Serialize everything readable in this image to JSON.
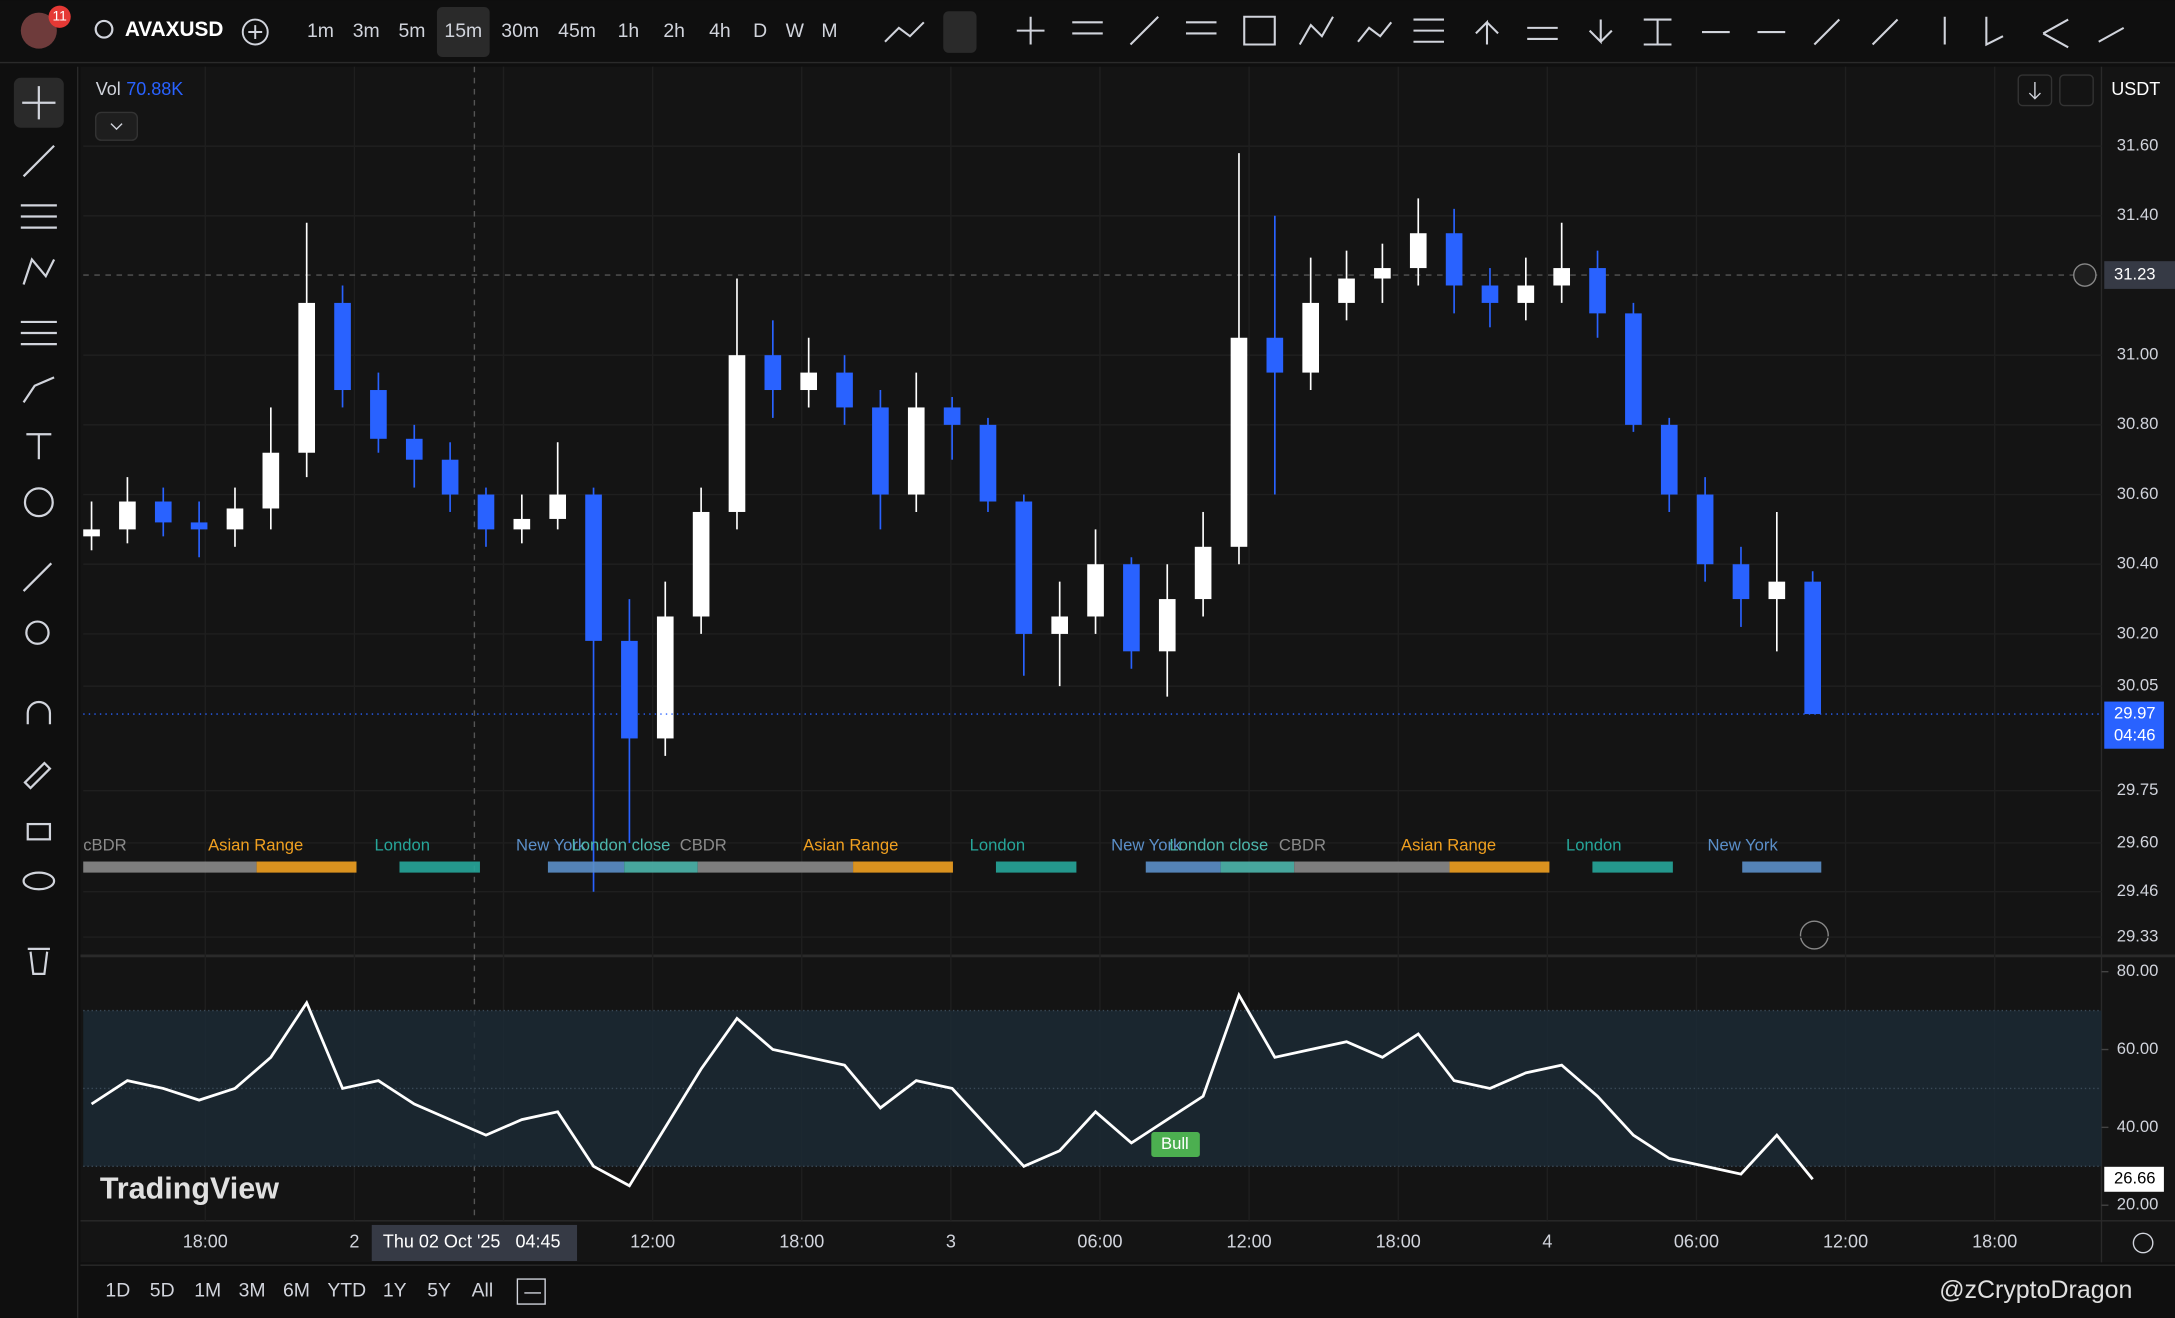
{
  "toolbar": {
    "badge": "11",
    "symbol": "AVAXUSD",
    "intervals": [
      "1m",
      "3m",
      "5m",
      "15m",
      "30m",
      "45m",
      "1h",
      "2h",
      "4h",
      "D",
      "W",
      "M"
    ],
    "active_interval": "15m"
  },
  "range_buttons": [
    "1D",
    "5D",
    "1M",
    "3M",
    "6M",
    "YTD",
    "1Y",
    "5Y",
    "All"
  ],
  "watermark": "TradingView",
  "credit": "@zCryptoDragon",
  "chart_data": [
    {
      "type": "candlestick",
      "legend_name": "Vol",
      "legend_value": "70.88K",
      "up_color": "#ffffff",
      "down_color": "#2962ff",
      "open": [
        30.48,
        30.5,
        30.58,
        30.52,
        30.5,
        30.56,
        30.72,
        31.15,
        30.9,
        30.76,
        30.7,
        30.6,
        30.5,
        30.53,
        30.6,
        30.18,
        29.9,
        30.25,
        30.55,
        31.0,
        30.9,
        30.95,
        30.85,
        30.6,
        30.85,
        30.8,
        30.58,
        30.2,
        30.25,
        30.4,
        30.15,
        30.3,
        30.45,
        31.05,
        30.95,
        31.15,
        31.22,
        31.25,
        31.35,
        31.2,
        31.15,
        31.2,
        31.25,
        31.12,
        30.8,
        30.6,
        30.4,
        30.3,
        30.35
      ],
      "high": [
        30.58,
        30.65,
        30.62,
        30.58,
        30.62,
        30.85,
        31.38,
        31.2,
        30.95,
        30.8,
        30.75,
        30.62,
        30.6,
        30.75,
        30.62,
        30.3,
        30.35,
        30.62,
        31.22,
        31.1,
        31.05,
        31.0,
        30.9,
        30.95,
        30.88,
        30.82,
        30.6,
        30.35,
        30.5,
        30.42,
        30.4,
        30.55,
        31.58,
        31.4,
        31.28,
        31.3,
        31.32,
        31.45,
        31.42,
        31.25,
        31.28,
        31.38,
        31.3,
        31.15,
        30.82,
        30.65,
        30.45,
        30.55,
        30.38
      ],
      "low": [
        30.44,
        30.46,
        30.48,
        30.42,
        30.45,
        30.5,
        30.65,
        30.85,
        30.72,
        30.62,
        30.55,
        30.45,
        30.46,
        30.5,
        29.46,
        29.6,
        29.85,
        30.2,
        30.5,
        30.82,
        30.85,
        30.8,
        30.5,
        30.55,
        30.7,
        30.55,
        30.08,
        30.05,
        30.2,
        30.1,
        30.02,
        30.25,
        30.4,
        30.6,
        30.9,
        31.1,
        31.15,
        31.2,
        31.12,
        31.08,
        31.1,
        31.15,
        31.05,
        30.78,
        30.55,
        30.35,
        30.22,
        30.15,
        29.97
      ],
      "close": [
        30.5,
        30.58,
        30.52,
        30.5,
        30.56,
        30.72,
        31.15,
        30.9,
        30.76,
        30.7,
        30.6,
        30.5,
        30.53,
        30.6,
        30.18,
        29.9,
        30.25,
        30.55,
        31.0,
        30.9,
        30.95,
        30.85,
        30.6,
        30.85,
        30.8,
        30.58,
        30.2,
        30.25,
        30.4,
        30.15,
        30.3,
        30.45,
        31.05,
        30.95,
        31.15,
        31.22,
        31.25,
        31.35,
        31.2,
        31.15,
        31.2,
        31.25,
        31.12,
        30.8,
        30.6,
        30.4,
        30.3,
        30.35,
        29.97
      ],
      "ylim": [
        29.28,
        31.82
      ],
      "yticks": [
        {
          "value": 31.6,
          "label": "31.60"
        },
        {
          "value": 31.4,
          "label": "31.40"
        },
        {
          "value": 31,
          "label": "31.00"
        },
        {
          "value": 30.8,
          "label": "30.80"
        },
        {
          "value": 30.6,
          "label": "30.60"
        },
        {
          "value": 30.4,
          "label": "30.40"
        },
        {
          "value": 30.2,
          "label": "30.20"
        },
        {
          "value": 30.05,
          "label": "30.05"
        },
        {
          "value": 29.75,
          "label": "29.75"
        },
        {
          "value": 29.6,
          "label": "29.60"
        },
        {
          "value": 29.46,
          "label": "29.46"
        },
        {
          "value": 29.33,
          "label": "29.33"
        }
      ],
      "crosshair_price": 31.23,
      "countdown": "04:46",
      "currency": "USDT",
      "x_labels": [
        "18:00",
        "2",
        null,
        "12:00",
        "18:00",
        "3",
        "06:00",
        "12:00",
        "18:00",
        "4",
        "06:00",
        "12:00",
        "18:00"
      ],
      "crosshair_time": "Thu 02 Oct '25   04:45",
      "grid": true,
      "sessions": [
        {
          "label": "cBDR",
          "color": "#8a8a8a"
        },
        {
          "label": "Asian Range",
          "color": "#f0a020"
        },
        {
          "label": "London",
          "color": "#26a69a"
        },
        {
          "label": "New York",
          "color": "#5b8fc9"
        },
        {
          "label": "London close",
          "color": "#4db6ac"
        },
        {
          "label": "CBDR",
          "color": "#8a8a8a"
        },
        {
          "label": "Asian Range",
          "color": "#f0a020"
        },
        {
          "label": "London",
          "color": "#26a69a"
        },
        {
          "label": "New York",
          "color": "#5b8fc9"
        },
        {
          "label": "London close",
          "color": "#4db6ac"
        },
        {
          "label": "CBDR",
          "color": "#8a8a8a"
        },
        {
          "label": "Asian Range",
          "color": "#f0a020"
        },
        {
          "label": "London",
          "color": "#26a69a"
        },
        {
          "label": "New York",
          "color": "#5b8fc9"
        }
      ]
    },
    {
      "type": "line",
      "color": "#ffffff",
      "values": [
        46,
        52,
        50,
        47,
        50,
        58,
        72,
        50,
        52,
        46,
        42,
        38,
        42,
        44,
        30,
        25,
        40,
        55,
        68,
        60,
        58,
        56,
        45,
        52,
        50,
        40,
        30,
        34,
        44,
        36,
        42,
        48,
        74,
        58,
        60,
        62,
        58,
        64,
        52,
        50,
        54,
        56,
        48,
        38,
        32,
        30,
        28,
        38,
        26.66
      ],
      "ylim": [
        16,
        83
      ],
      "yticks": [
        {
          "value": 80,
          "label": "80.00"
        },
        {
          "value": 60,
          "label": "60.00"
        },
        {
          "value": 40,
          "label": "40.00"
        },
        {
          "value": 20,
          "label": "20.00"
        }
      ],
      "band": [
        30,
        70
      ],
      "midline": 50,
      "band_color": "#1b2a36",
      "signal_label": "Bull",
      "signal_color": "#4caf50"
    }
  ]
}
